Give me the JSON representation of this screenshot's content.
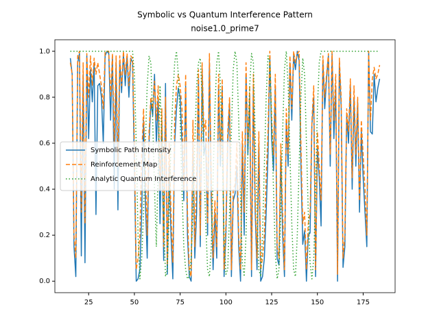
{
  "chart_data": {
    "type": "line",
    "title": "Symbolic vs Quantum Interference Pattern",
    "subtitle": "noise1.0_prime7",
    "x": [
      15,
      16,
      17,
      18,
      19,
      20,
      21,
      22,
      23,
      24,
      25,
      26,
      27,
      28,
      29,
      30,
      31,
      32,
      33,
      34,
      35,
      36,
      37,
      38,
      39,
      40,
      41,
      42,
      43,
      44,
      45,
      46,
      47,
      48,
      49,
      50,
      51,
      52,
      53,
      54,
      55,
      56,
      57,
      58,
      59,
      60,
      61,
      62,
      63,
      64,
      65,
      66,
      67,
      68,
      69,
      70,
      71,
      72,
      73,
      74,
      75,
      76,
      77,
      78,
      79,
      80,
      81,
      82,
      83,
      84,
      85,
      86,
      87,
      88,
      89,
      90,
      91,
      92,
      93,
      94,
      95,
      96,
      97,
      98,
      99,
      100,
      101,
      102,
      103,
      104,
      105,
      106,
      107,
      108,
      109,
      110,
      111,
      112,
      113,
      114,
      115,
      116,
      117,
      118,
      119,
      120,
      121,
      122,
      123,
      124,
      125,
      126,
      127,
      128,
      129,
      130,
      131,
      132,
      133,
      134,
      135,
      136,
      137,
      138,
      139,
      140,
      141,
      142,
      143,
      144,
      145,
      146,
      147,
      148,
      149,
      150,
      151,
      152,
      153,
      154,
      155,
      156,
      157,
      158,
      159,
      160,
      161,
      162,
      163,
      164,
      165,
      166,
      167,
      168,
      169,
      170,
      171,
      172,
      173,
      174,
      175,
      176,
      177,
      178,
      179,
      180,
      181,
      182,
      183,
      184
    ],
    "series": [
      {
        "name": "Symbolic Path Intensity",
        "color": "#1f77b4",
        "dash": "none",
        "values": [
          0.97,
          0.9,
          0.15,
          0.02,
          0.95,
          0.99,
          0.11,
          0.9,
          0.08,
          0.98,
          0.62,
          0.92,
          0.78,
          0.95,
          0.29,
          0.85,
          0.86,
          0.8,
          0.6,
          0.98,
          1.0,
          0.99,
          0.7,
          0.98,
          0.4,
          0.95,
          0.31,
          0.96,
          0.82,
          0.99,
          0.85,
          0.98,
          0.8,
          0.97,
          0.95,
          0.5,
          0.0,
          0.01,
          0.05,
          0.3,
          0.7,
          0.35,
          0.1,
          0.6,
          0.78,
          0.72,
          0.9,
          0.6,
          0.8,
          0.25,
          0.7,
          0.09,
          0.86,
          0.03,
          0.5,
          0.2,
          0.01,
          0.6,
          0.75,
          0.84,
          0.8,
          0.6,
          0.35,
          0.85,
          0.2,
          0.02,
          0.0,
          0.6,
          0.1,
          0.3,
          0.88,
          0.15,
          0.92,
          0.55,
          0.6,
          0.2,
          0.95,
          0.35,
          0.05,
          0.3,
          0.1,
          0.85,
          0.5,
          0.85,
          0.02,
          0.2,
          0.6,
          0.78,
          0.02,
          0.35,
          0.38,
          0.5,
          0.15,
          0.0,
          0.6,
          0.2,
          0.9,
          0.55,
          0.8,
          0.02,
          0.85,
          0.3,
          0.05,
          0.6,
          0.0,
          0.02,
          0.1,
          0.3,
          0.55,
          0.98,
          0.62,
          0.48,
          0.85,
          0.1,
          0.07,
          0.55,
          0.2,
          0.02,
          0.7,
          0.5,
          0.95,
          0.7,
          0.98,
          0.92,
          1.0,
          0.96,
          0.5,
          0.16,
          0.22,
          0.0,
          0.2,
          0.21,
          0.68,
          0.8,
          0.02,
          0.58,
          0.45,
          0.24,
          0.96,
          0.75,
          0.88,
          0.98,
          0.5,
          0.99,
          0.62,
          0.85,
          0.0,
          0.95,
          0.75,
          0.06,
          0.15,
          0.72,
          0.6,
          0.85,
          0.4,
          0.8,
          0.5,
          0.78,
          0.3,
          0.65,
          0.45,
          0.3,
          0.15,
          1.0,
          0.65,
          0.64,
          0.9,
          0.78,
          0.84,
          0.88
        ]
      },
      {
        "name": "Reinforcement Map",
        "color": "#ff7f0e",
        "dash": "6 3",
        "values": [
          0.95,
          0.9,
          0.2,
          0.1,
          0.98,
          1.0,
          0.3,
          0.95,
          0.25,
          0.99,
          0.8,
          0.98,
          0.85,
          0.97,
          0.9,
          0.95,
          0.9,
          0.85,
          0.75,
          1.0,
          1.0,
          1.0,
          0.8,
          0.99,
          0.6,
          0.98,
          0.5,
          0.98,
          0.85,
          1.0,
          0.9,
          0.99,
          0.85,
          0.98,
          0.97,
          0.6,
          0.05,
          0.1,
          0.2,
          0.55,
          0.75,
          0.5,
          0.2,
          0.65,
          0.8,
          0.75,
          0.87,
          0.7,
          0.85,
          0.4,
          0.75,
          0.15,
          0.8,
          0.07,
          0.6,
          0.3,
          0.08,
          0.7,
          0.85,
          0.9,
          0.85,
          0.75,
          0.4,
          0.9,
          0.3,
          0.05,
          0.02,
          0.7,
          0.15,
          0.45,
          0.92,
          0.2,
          0.95,
          0.65,
          0.7,
          0.25,
          0.99,
          0.45,
          0.1,
          0.35,
          0.15,
          0.9,
          0.55,
          0.88,
          0.05,
          0.25,
          0.65,
          0.8,
          0.05,
          0.4,
          0.42,
          0.6,
          0.2,
          0.05,
          0.65,
          0.3,
          0.95,
          0.6,
          0.85,
          0.05,
          0.9,
          0.35,
          0.1,
          0.65,
          0.05,
          0.1,
          0.2,
          0.45,
          0.65,
          1.0,
          0.7,
          0.55,
          0.9,
          0.15,
          0.1,
          0.6,
          0.3,
          0.05,
          0.75,
          0.55,
          0.98,
          0.75,
          1.0,
          0.95,
          0.99,
          1.0,
          0.6,
          0.25,
          0.3,
          0.05,
          0.25,
          0.3,
          0.7,
          0.85,
          0.05,
          0.65,
          0.5,
          0.35,
          0.98,
          0.8,
          0.9,
          0.99,
          0.55,
          1.0,
          0.7,
          0.9,
          0.03,
          0.97,
          0.8,
          0.1,
          0.2,
          0.75,
          0.65,
          0.88,
          0.45,
          0.85,
          0.55,
          0.8,
          0.35,
          0.7,
          0.55,
          0.4,
          0.2,
          1.0,
          0.7,
          0.88,
          0.93,
          0.88,
          0.9,
          0.94
        ]
      },
      {
        "name": "Analytic Quantum Interference",
        "color": "#2ca02c",
        "dash": "1.5 3",
        "values": [
          1,
          1,
          1,
          1,
          1,
          1,
          1,
          1,
          1,
          1,
          1,
          1,
          1,
          1,
          1,
          1,
          1,
          1,
          1,
          1,
          1,
          1,
          1,
          1,
          1,
          1,
          1,
          1,
          1,
          1,
          1,
          1,
          1,
          1,
          1,
          0.9,
          0.6,
          0.2,
          0.01,
          0.1,
          0.3,
          0.6,
          0.85,
          0.98,
          0.95,
          0.7,
          0.4,
          0.15,
          0.5,
          0.85,
          0.6,
          0.3,
          0.02,
          0.05,
          0.3,
          0.6,
          0.8,
          0.95,
          1.0,
          0.9,
          0.7,
          0.4,
          0.15,
          0.05,
          0.01,
          0.02,
          0.1,
          0.3,
          0.6,
          0.85,
          0.95,
          0.97,
          0.8,
          0.5,
          0.25,
          0.05,
          0.02,
          0.15,
          0.45,
          0.75,
          0.95,
          1.0,
          0.85,
          0.55,
          0.2,
          0.03,
          0.05,
          0.3,
          0.65,
          0.92,
          1.0,
          0.95,
          0.7,
          0.35,
          0.08,
          0.02,
          0.2,
          0.55,
          0.85,
          0.99,
          0.95,
          0.65,
          0.3,
          0.05,
          0.02,
          0.2,
          0.5,
          0.8,
          0.98,
          0.95,
          0.7,
          0.4,
          0.12,
          0.01,
          0.05,
          0.3,
          0.65,
          0.92,
          1.0,
          0.85,
          0.55,
          0.25,
          0.05,
          0.02,
          0.2,
          0.5,
          0.8,
          0.97,
          0.9,
          0.6,
          0.3,
          0.08,
          0.01,
          0.1,
          0.4,
          0.75,
          0.95,
          1.0,
          1.0,
          1.0,
          1,
          1,
          1,
          1,
          1,
          1,
          1,
          1,
          1,
          1,
          1,
          1,
          1,
          1,
          1,
          1,
          1,
          1,
          1,
          1,
          1,
          1,
          1,
          1,
          1,
          1,
          1,
          1,
          1,
          1
        ]
      }
    ],
    "xlim": [
      6.55,
      192.45
    ],
    "ylim": [
      -0.05,
      1.05
    ],
    "xticks": [
      25,
      50,
      75,
      100,
      125,
      150,
      175
    ],
    "yticks": [
      {
        "value": 0,
        "label": "0.0"
      },
      {
        "value": 0.2,
        "label": "0.2"
      },
      {
        "value": 0.4,
        "label": "0.4"
      },
      {
        "value": 0.6,
        "label": "0.6"
      },
      {
        "value": 0.8,
        "label": "0.8"
      },
      {
        "value": 1,
        "label": "1.0"
      }
    ],
    "grid": false,
    "legend": "center left"
  }
}
